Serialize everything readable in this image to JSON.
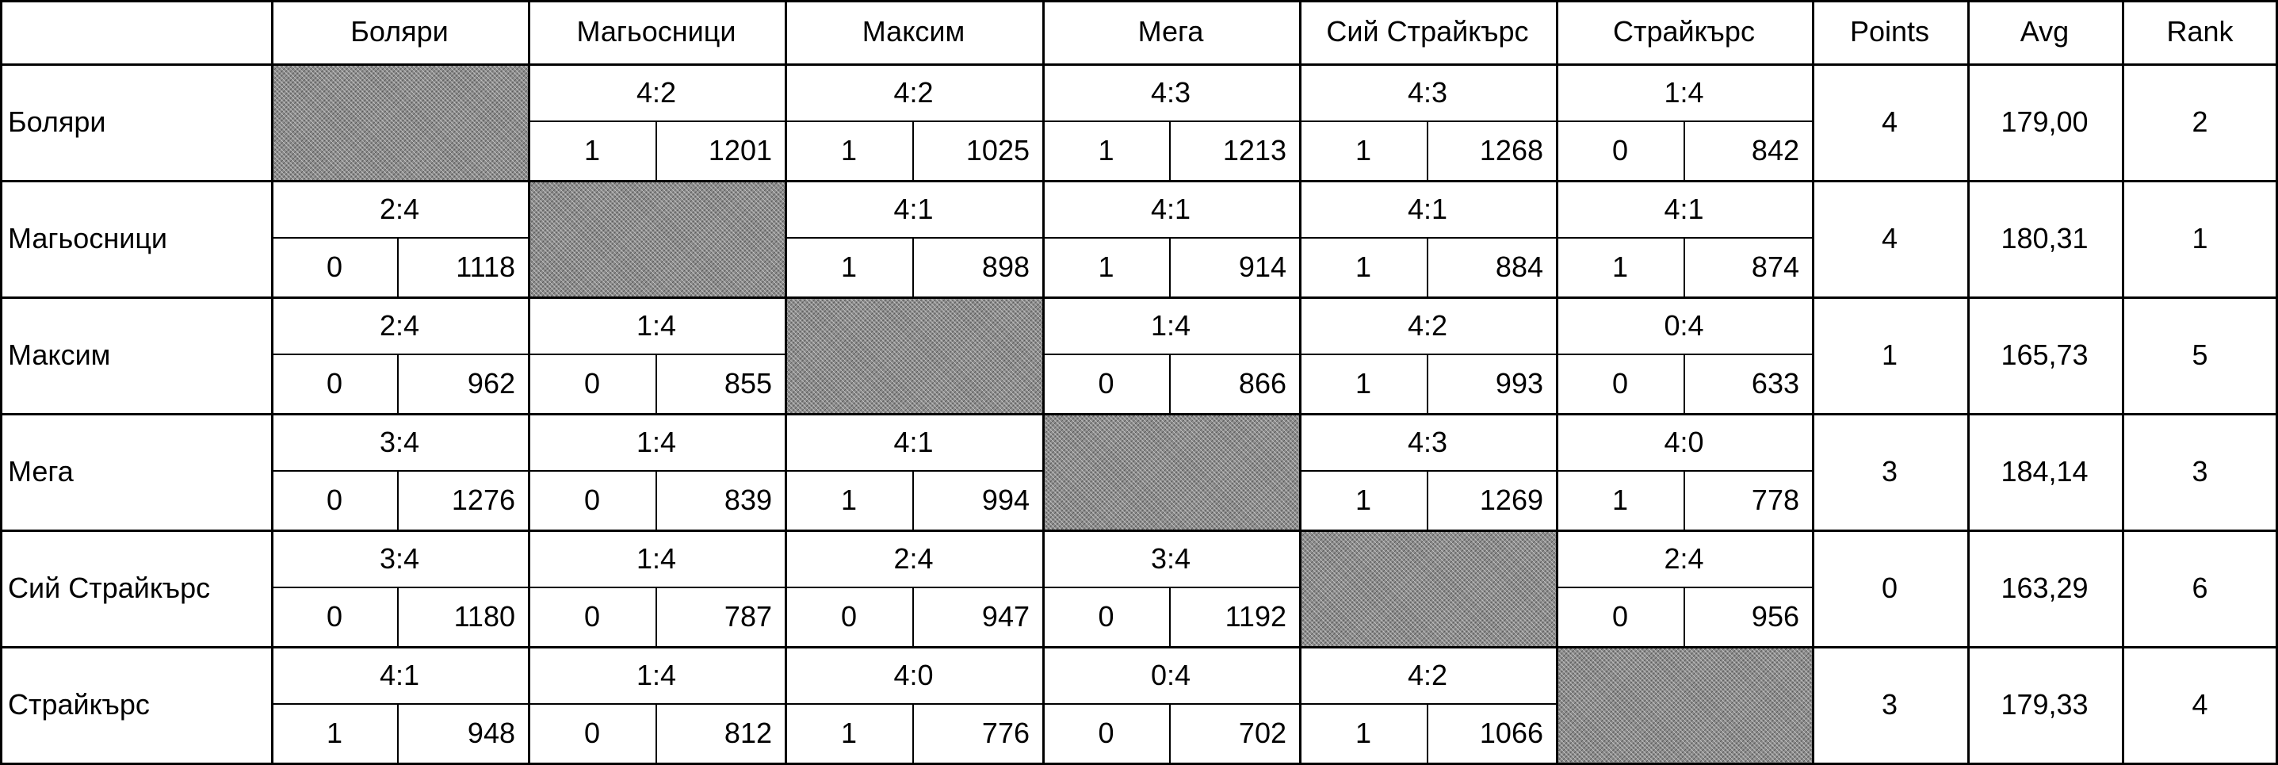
{
  "columns": [
    "Боляри",
    "Магьосници",
    "Максим",
    "Мега",
    "Сий Страйкърс",
    "Страйкърс"
  ],
  "summary_headers": [
    "Points",
    "Avg",
    "Rank"
  ],
  "rows": [
    {
      "team": "Боляри",
      "cells": [
        null,
        {
          "score": "4:2",
          "points": "1",
          "pins": "1201"
        },
        {
          "score": "4:2",
          "points": "1",
          "pins": "1025"
        },
        {
          "score": "4:3",
          "points": "1",
          "pins": "1213"
        },
        {
          "score": "4:3",
          "points": "1",
          "pins": "1268"
        },
        {
          "score": "1:4",
          "points": "0",
          "pins": "842"
        }
      ],
      "points": "4",
      "avg": "179,00",
      "rank": "2"
    },
    {
      "team": "Магьосници",
      "cells": [
        {
          "score": "2:4",
          "points": "0",
          "pins": "1118"
        },
        null,
        {
          "score": "4:1",
          "points": "1",
          "pins": "898"
        },
        {
          "score": "4:1",
          "points": "1",
          "pins": "914"
        },
        {
          "score": "4:1",
          "points": "1",
          "pins": "884"
        },
        {
          "score": "4:1",
          "points": "1",
          "pins": "874"
        }
      ],
      "points": "4",
      "avg": "180,31",
      "rank": "1"
    },
    {
      "team": "Максим",
      "cells": [
        {
          "score": "2:4",
          "points": "0",
          "pins": "962"
        },
        {
          "score": "1:4",
          "points": "0",
          "pins": "855"
        },
        null,
        {
          "score": "1:4",
          "points": "0",
          "pins": "866"
        },
        {
          "score": "4:2",
          "points": "1",
          "pins": "993"
        },
        {
          "score": "0:4",
          "points": "0",
          "pins": "633"
        }
      ],
      "points": "1",
      "avg": "165,73",
      "rank": "5"
    },
    {
      "team": "Мега",
      "cells": [
        {
          "score": "3:4",
          "points": "0",
          "pins": "1276"
        },
        {
          "score": "1:4",
          "points": "0",
          "pins": "839"
        },
        {
          "score": "4:1",
          "points": "1",
          "pins": "994"
        },
        null,
        {
          "score": "4:3",
          "points": "1",
          "pins": "1269"
        },
        {
          "score": "4:0",
          "points": "1",
          "pins": "778"
        }
      ],
      "points": "3",
      "avg": "184,14",
      "rank": "3"
    },
    {
      "team": "Сий Страйкърс",
      "cells": [
        {
          "score": "3:4",
          "points": "0",
          "pins": "1180"
        },
        {
          "score": "1:4",
          "points": "0",
          "pins": "787"
        },
        {
          "score": "2:4",
          "points": "0",
          "pins": "947"
        },
        {
          "score": "3:4",
          "points": "0",
          "pins": "1192"
        },
        null,
        {
          "score": "2:4",
          "points": "0",
          "pins": "956"
        }
      ],
      "points": "0",
      "avg": "163,29",
      "rank": "6"
    },
    {
      "team": "Страйкърс",
      "cells": [
        {
          "score": "4:1",
          "points": "1",
          "pins": "948"
        },
        {
          "score": "1:4",
          "points": "0",
          "pins": "812"
        },
        {
          "score": "4:0",
          "points": "1",
          "pins": "776"
        },
        {
          "score": "0:4",
          "points": "0",
          "pins": "702"
        },
        {
          "score": "4:2",
          "points": "1",
          "pins": "1066"
        },
        null
      ],
      "points": "3",
      "avg": "179,33",
      "rank": "4"
    }
  ]
}
